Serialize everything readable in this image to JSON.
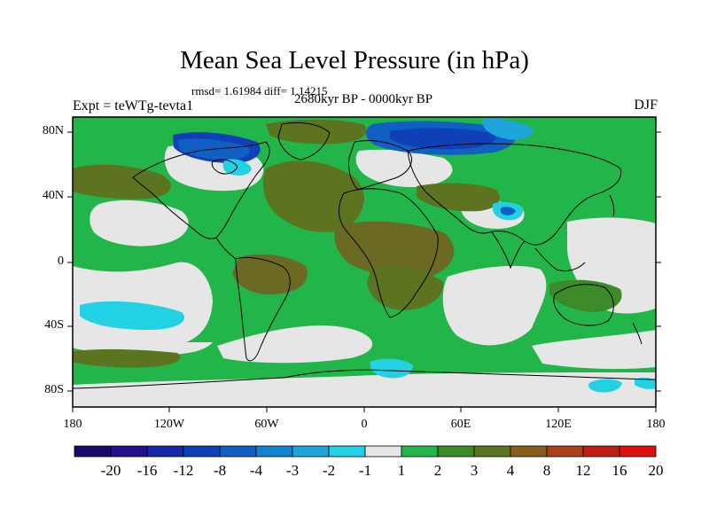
{
  "title": "Mean Sea Level Pressure (in hPa)",
  "stats_line": "rmsd= 1.61984 diff= 1.14215",
  "experiment_label": "Expt = teWTg-tevta1",
  "period_label": "2680kyr BP - 0000kyr BP",
  "season_label": "DJF",
  "lat_labels": [
    "80N",
    "40N",
    "0",
    "40S",
    "80S"
  ],
  "lon_labels": [
    "180",
    "120W",
    "60W",
    "0",
    "60E",
    "120E",
    "180"
  ],
  "colorbar": {
    "labels": [
      "-20",
      "-16",
      "-12",
      "-8",
      "-4",
      "-3",
      "-2",
      "-1",
      "1",
      "2",
      "3",
      "4",
      "8",
      "12",
      "16",
      "20"
    ],
    "colors": [
      "#1a0a6b",
      "#23118f",
      "#1428a8",
      "#0f40b8",
      "#1060c4",
      "#1482d0",
      "#1ca6dc",
      "#22d2e4",
      "#e6e6e6",
      "#22b64a",
      "#3d8a2a",
      "#5c7420",
      "#8a5c1a",
      "#a8401a",
      "#c01e14",
      "#e0100c"
    ]
  },
  "colors": {
    "background_field": "#22b64a",
    "near_zero": "#e6e6e6",
    "positive_moderate": "#3d8a2a",
    "positive_high": "#6b6a24",
    "positive_brown": "#7a5c22",
    "negative_light": "#22d2e4",
    "negative_mid": "#1ca6dc",
    "negative_strong": "#1060c4",
    "negative_deep": "#0f40b8"
  }
}
